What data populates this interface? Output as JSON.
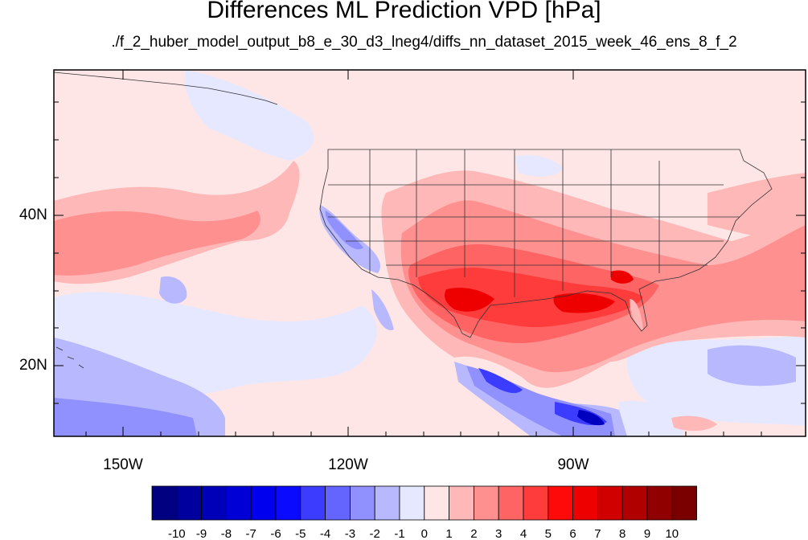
{
  "header": {
    "title": "Differences ML Prediction VPD [hPa]",
    "subtitle": "./f_2_huber_model_output_b8_e_30_d3_lneg4/diffs_nn_dataset_2015_week_46_ens_8_f_2"
  },
  "axes": {
    "y_labels": [
      "40N",
      "20N"
    ],
    "x_labels": [
      "150W",
      "120W",
      "90W"
    ]
  },
  "colorbar": {
    "labels": [
      "-10",
      "-9",
      "-8",
      "-7",
      "-6",
      "-5",
      "-4",
      "-3",
      "-2",
      "-1",
      "0",
      "1",
      "2",
      "3",
      "4",
      "5",
      "6",
      "7",
      "8",
      "9",
      "10"
    ],
    "colors": [
      "#000080",
      "#00009e",
      "#0000b8",
      "#0000d6",
      "#0000ee",
      "#0a0aff",
      "#3c3cff",
      "#6464ff",
      "#9090ff",
      "#b8b8ff",
      "#e6e8ff",
      "#ffe6e6",
      "#ffb8b8",
      "#ff9090",
      "#ff6464",
      "#ff3c3c",
      "#ff0a0a",
      "#ee0000",
      "#d00000",
      "#b00000",
      "#900000",
      "#7a0000"
    ]
  },
  "map_colors": {
    "background": "#ffe6e6",
    "light_blue": "#e6e8ff",
    "blue": "#b8b8ff",
    "mid_blue": "#9090ff",
    "deep_blue": "#3c3cff",
    "navy": "#0000c0",
    "pink": "#ffb8b8",
    "salmon": "#ff9090",
    "red": "#ff6464",
    "bright_red": "#ff3c3c",
    "dark_red": "#ee0000"
  }
}
